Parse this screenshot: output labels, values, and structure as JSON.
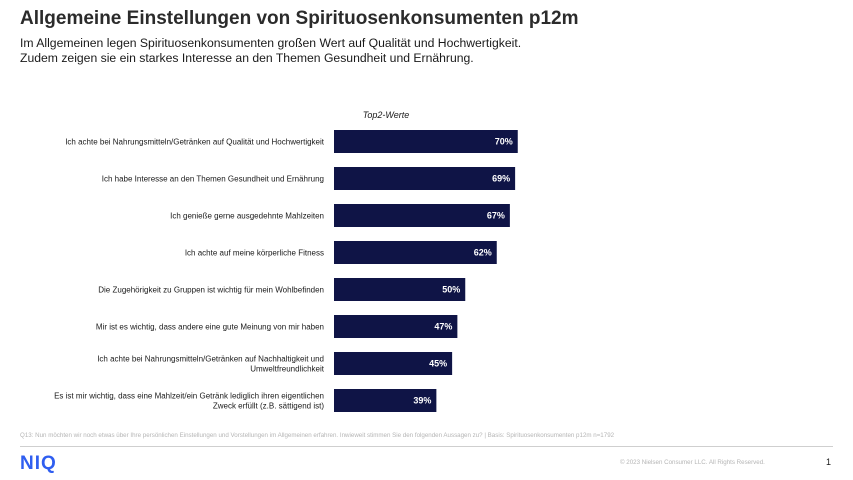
{
  "header": {
    "title": "Allgemeine Einstellungen von Spirituosenkonsumenten p12m",
    "subtitle_line1": "Im Allgemeinen legen Spirituosenkonsumenten großen Wert auf Qualität und Hochwertigkeit.",
    "subtitle_line2": "Zudem zeigen sie ein starkes Interesse an den Themen Gesundheit und Ernährung."
  },
  "chart_data": {
    "type": "bar",
    "orientation": "horizontal",
    "title": "",
    "column_header": "Top2-Werte",
    "categories": [
      [
        "Ich achte bei Nahrungsmitteln/Getränken auf Qualität und Hochwertigkeit"
      ],
      [
        "Ich habe Interesse an den Themen Gesundheit und Ernährung"
      ],
      [
        "Ich genieße gerne ausgedehnte Mahlzeiten"
      ],
      [
        "Ich achte auf meine körperliche Fitness"
      ],
      [
        "Die Zugehörigkeit zu Gruppen ist wichtig für mein Wohlbefinden"
      ],
      [
        "Mir ist es wichtig, dass andere eine gute Meinung von mir haben"
      ],
      [
        "Ich achte bei Nahrungsmitteln/Getränken auf Nachhaltigkeit und",
        "Umweltfreundlichkeit"
      ],
      [
        "Es ist mir wichtig, dass eine Mahlzeit/ein Getränk lediglich ihren eigentlichen",
        "Zweck erfüllt (z.B. sättigend ist)"
      ]
    ],
    "values": [
      70,
      69,
      67,
      62,
      50,
      47,
      45,
      39
    ],
    "value_labels": [
      "70%",
      "69%",
      "67%",
      "62%",
      "50%",
      "47%",
      "45%",
      "39%"
    ],
    "unit": "%",
    "xlim": [
      0,
      100
    ],
    "bar_color": "#0f1446"
  },
  "footer": {
    "footnote": "Q13: Nun möchten wir noch etwas über Ihre persönlichen Einstellungen und Vorstellungen im Allgemeinen erfahren. Inwieweit stimmen Sie den folgenden Aussagen zu? | Basis: Spirituosenkonsumenten p12m n=1792",
    "logo": "NIQ",
    "copyright": "© 2023 Nielsen Consumer LLC. All Rights Reserved.",
    "page_number": "1"
  }
}
